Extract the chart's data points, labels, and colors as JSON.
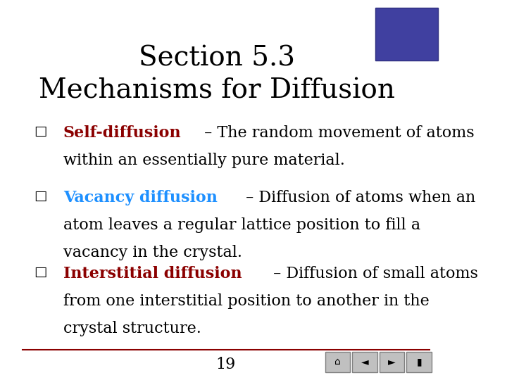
{
  "title_line1": "Section 5.3",
  "title_line2": "Mechanisms for Diffusion",
  "title_fontsize": 28,
  "title_color": "#000000",
  "background_color": "#ffffff",
  "bullet_char": "□",
  "bullet_color": "#000000",
  "bullet_fontsize": 16,
  "items": [
    {
      "keyword": "Self-diffusion",
      "keyword_color": "#8B0000",
      "rest": " – The random movement of atoms\nwithin an essentially pure material.",
      "rest_color": "#000000"
    },
    {
      "keyword": "Vacancy diffusion",
      "keyword_color": "#1E90FF",
      "rest": " – Diffusion of atoms when an\natom leaves a regular lattice position to fill a\nvacancy in the crystal.",
      "rest_color": "#000000"
    },
    {
      "keyword": "Interstitial diffusion",
      "keyword_color": "#8B0000",
      "rest": " – Diffusion of small atoms\nfrom one interstitial position to another in the\ncrystal structure.",
      "rest_color": "#000000"
    }
  ],
  "page_number": "19",
  "footer_line_color": "#8B0000",
  "page_num_fontsize": 16,
  "font_family": "DejaVu Serif"
}
